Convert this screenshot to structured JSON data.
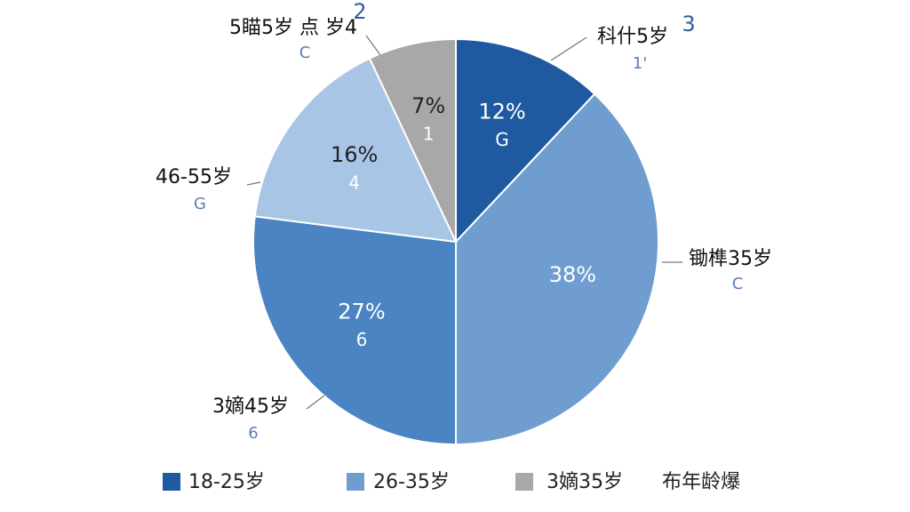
{
  "chart_data": {
    "type": "pie",
    "values": [
      12,
      38,
      27,
      16,
      7
    ],
    "value_labels": [
      "12%",
      "38%",
      "27%",
      "16%",
      "7%"
    ],
    "colors": [
      "#1f5aa0",
      "#6f9dd0",
      "#4a84c2",
      "#a8c5e6",
      "#a8a8a8"
    ],
    "inner_labels": [
      "G",
      null,
      "6",
      "4",
      "1"
    ],
    "outer_labels": [
      {
        "text": "科什5岁",
        "sub": "1'",
        "extra": "3"
      },
      {
        "text": "锄榫35岁",
        "sub": "C",
        "extra": null
      },
      {
        "text": "3嫡45岁",
        "sub": "6",
        "extra": null
      },
      {
        "text": "46-55岁",
        "sub": "G",
        "extra": null
      },
      {
        "text": "5瞄5岁 点 岁4",
        "sub": "C",
        "extra": "2"
      }
    ],
    "legend": [
      {
        "label": "18-25岁",
        "color": "#1f5aa0"
      },
      {
        "label": "26-35岁",
        "color": "#6f9dd0"
      },
      {
        "label": "3嫡35岁",
        "color": "#a8a8a8"
      },
      {
        "label": "布年龄爆",
        "color": null
      }
    ]
  }
}
